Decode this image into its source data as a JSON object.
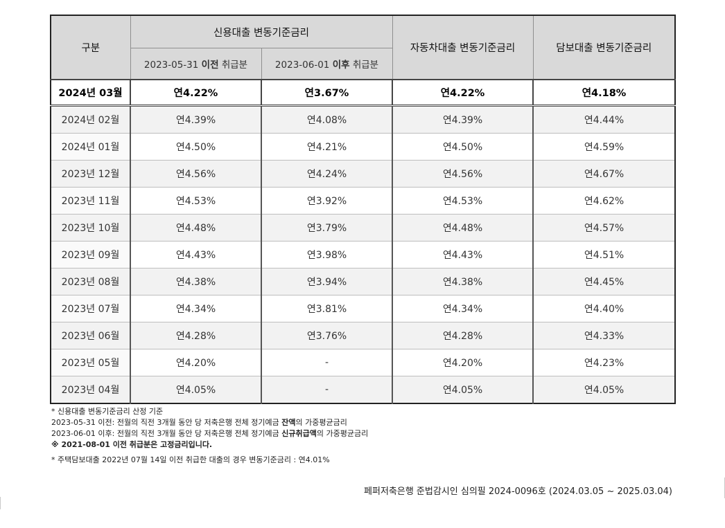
{
  "table": {
    "header": {
      "category": "구분",
      "credit_group": "신용대출 변동기준금리",
      "credit_before_date": "2023-05-31",
      "credit_before_word": "이전",
      "credit_before_suffix": "취급분",
      "credit_after_date": "2023-06-01",
      "credit_after_word": "이후",
      "credit_after_suffix": "취급분",
      "auto": "자동차대출 변동기준금리",
      "secured": "담보대출 변동기준금리"
    },
    "current": {
      "month": "2024년 03월",
      "before": "연4.22%",
      "after": "연3.67%",
      "auto": "연4.22%",
      "secured": "연4.18%"
    },
    "rows": [
      {
        "month": "2024년 02월",
        "before": "연4.39%",
        "after": "연4.08%",
        "auto": "연4.39%",
        "secured": "연4.44%"
      },
      {
        "month": "2024년 01월",
        "before": "연4.50%",
        "after": "연4.21%",
        "auto": "연4.50%",
        "secured": "연4.59%"
      },
      {
        "month": "2023년 12월",
        "before": "연4.56%",
        "after": "연4.24%",
        "auto": "연4.56%",
        "secured": "연4.67%"
      },
      {
        "month": "2023년 11월",
        "before": "연4.53%",
        "after": "연3.92%",
        "auto": "연4.53%",
        "secured": "연4.62%"
      },
      {
        "month": "2023년 10월",
        "before": "연4.48%",
        "after": "연3.79%",
        "auto": "연4.48%",
        "secured": "연4.57%"
      },
      {
        "month": "2023년 09월",
        "before": "연4.43%",
        "after": "연3.98%",
        "auto": "연4.43%",
        "secured": "연4.51%"
      },
      {
        "month": "2023년 08월",
        "before": "연4.38%",
        "after": "연3.94%",
        "auto": "연4.38%",
        "secured": "연4.45%"
      },
      {
        "month": "2023년 07월",
        "before": "연4.34%",
        "after": "연3.81%",
        "auto": "연4.34%",
        "secured": "연4.40%"
      },
      {
        "month": "2023년 06월",
        "before": "연4.28%",
        "after": "연3.76%",
        "auto": "연4.28%",
        "secured": "연4.33%"
      },
      {
        "month": "2023년 05월",
        "before": "연4.20%",
        "after": "-",
        "auto": "연4.20%",
        "secured": "연4.23%"
      },
      {
        "month": "2023년 04월",
        "before": "연4.05%",
        "after": "-",
        "auto": "연4.05%",
        "secured": "연4.05%"
      }
    ]
  },
  "notes": {
    "line1": "* 신용대출 변동기준금리 산정 기준",
    "line2_prefix": "2023-05-31 이전: 전월의 직전 3개월 동안 당 저축은행 전체 정기예금 ",
    "line2_bold": "잔액",
    "line2_suffix": "의 가중평균금리",
    "line3_prefix": "2023-06-01 이후: 전월의 직전 3개월 동안 당 저축은행 전체 정기예금 ",
    "line3_bold": "신규취급액",
    "line3_suffix": "의 가중평균금리",
    "line4": "※ 2021-08-01 이전 취급분은 고정금리입니다.",
    "line5": "* 주택담보대출 2022년 07월 14일 이전 취급한 대출의 경우 변동기준금리 : 연4.01%"
  },
  "footer": "페퍼저축은행 준법감시인 심의필 2024-0096호 (2024.03.05 ~ 2025.03.04)"
}
